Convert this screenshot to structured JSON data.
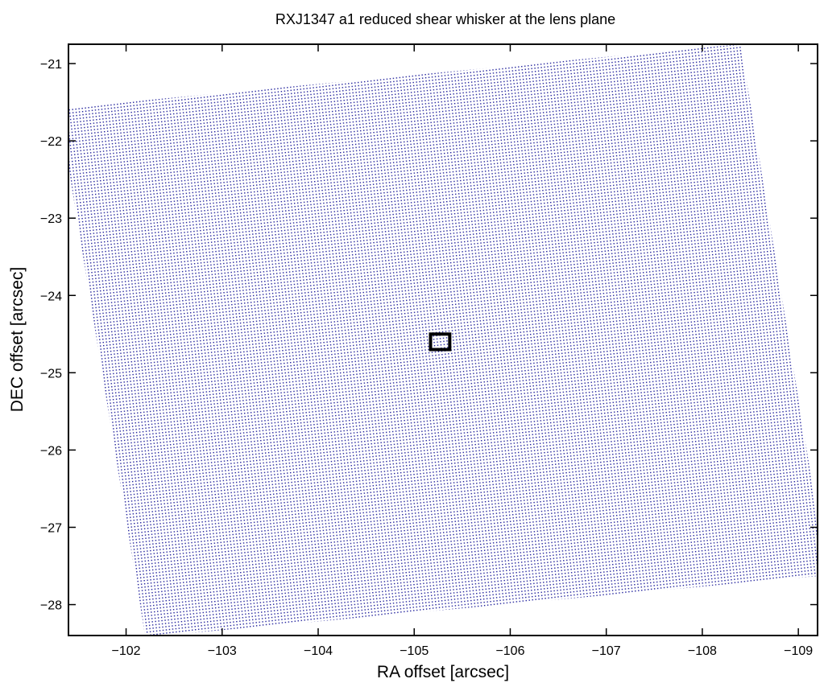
{
  "chart_data": {
    "type": "scatter",
    "title": "RXJ1347 a1 reduced shear whisker at the lens plane",
    "xlabel": "RA offset [arcsec]",
    "ylabel": "DEC offset [arcsec]",
    "xlim": [
      -101.4,
      -109.2
    ],
    "ylim": [
      -28.4,
      -20.75
    ],
    "x_reversed": true,
    "x_ticks": [
      -102,
      -103,
      -104,
      -105,
      -106,
      -107,
      -108,
      -109
    ],
    "x_tick_labels": [
      "−102",
      "−103",
      "−104",
      "−105",
      "−106",
      "−107",
      "−108",
      "−109"
    ],
    "y_ticks": [
      -21,
      -22,
      -23,
      -24,
      -25,
      -26,
      -27,
      -28
    ],
    "y_tick_labels": [
      "−21",
      "−22",
      "−23",
      "−24",
      "−25",
      "−26",
      "−27",
      "−28"
    ],
    "grid": false,
    "field_corners": [
      [
        -101.3,
        -21.58
      ],
      [
        -108.4,
        -20.75
      ],
      [
        -109.3,
        -27.62
      ],
      [
        -102.2,
        -28.42
      ]
    ],
    "field_color": "#1a1a99",
    "marker": {
      "x": -105.27,
      "y": -24.6,
      "half_size": 0.1,
      "color": "#000000"
    }
  }
}
